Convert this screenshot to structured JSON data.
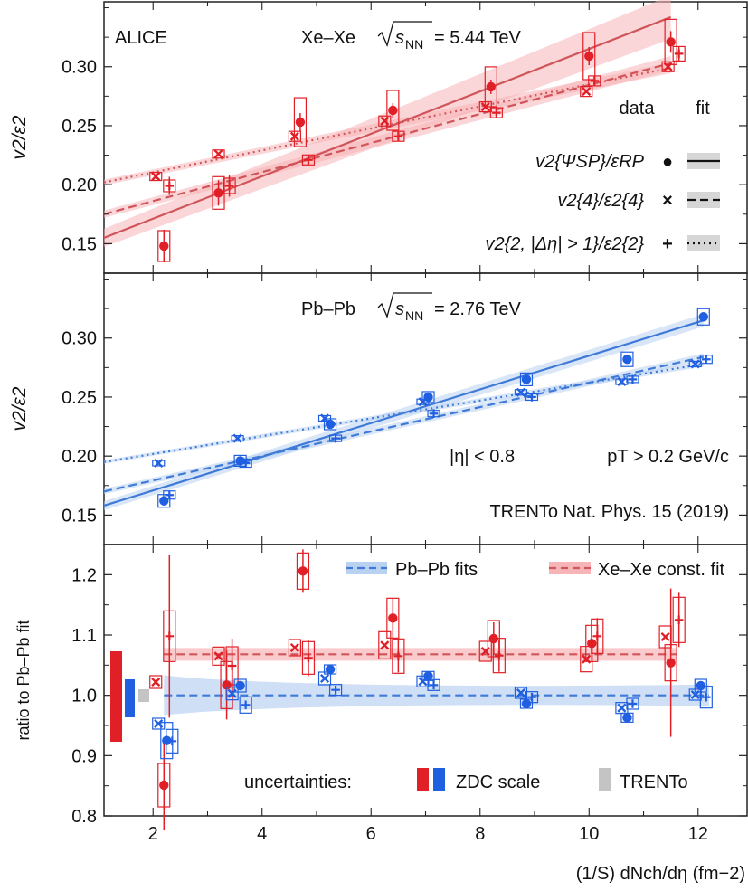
{
  "colors": {
    "xe": "#e11f26",
    "xe_line": "#d0555a",
    "xe_band": "#f7b5b8",
    "pb": "#1f5fe0",
    "pb_line": "#3f7ad8",
    "pb_band": "#b9d2f2",
    "trento_bar": "#c4c4c4",
    "legend_band": "#d6d6d6"
  },
  "chart_data": [
    {
      "type": "scatter",
      "panel": "top",
      "ylabel": "v2/ε2",
      "ylim": [
        0.125,
        0.355
      ],
      "xlim": [
        1.1,
        12.9
      ],
      "yticks": [
        "0.15",
        "0.20",
        "0.25",
        "0.30"
      ],
      "annotations": {
        "experiment": "ALICE",
        "system": "Xe–Xe",
        "energy": "= 5.44 TeV",
        "sqrt_label": "s",
        "sqrt_sub": "NN"
      },
      "legend": {
        "col_data": "data",
        "col_fit": "fit",
        "entries": [
          {
            "label": "v2{ΨSP}/εRP",
            "marker": "●",
            "line": "solid"
          },
          {
            "label": "v2{4}/ε2{4}",
            "marker": "×",
            "line": "dashed"
          },
          {
            "label": "v2{2, |Δη| > 1}/ε2{2}",
            "marker": "+",
            "line": "dotted"
          }
        ]
      },
      "series": [
        {
          "marker": "dot",
          "x": [
            2.2,
            3.2,
            4.7,
            6.4,
            8.2,
            10.0,
            11.5
          ],
          "y": [
            0.148,
            0.193,
            0.253,
            0.263,
            0.283,
            0.309,
            0.321
          ]
        },
        {
          "marker": "cross",
          "x": [
            2.05,
            3.2,
            4.6,
            6.25,
            8.1,
            9.95,
            11.45
          ],
          "y": [
            0.207,
            0.226,
            0.241,
            0.254,
            0.266,
            0.279,
            0.3
          ]
        },
        {
          "marker": "plus",
          "x": [
            2.3,
            3.4,
            4.85,
            6.5,
            8.3,
            10.1,
            11.65
          ],
          "y": [
            0.199,
            0.199,
            0.221,
            0.241,
            0.261,
            0.288,
            0.311
          ]
        }
      ],
      "fits": [
        {
          "style": "solid",
          "x": [
            1.1,
            11.5
          ],
          "y": [
            0.155,
            0.342
          ]
        },
        {
          "style": "dashed",
          "x": [
            1.1,
            11.5
          ],
          "y": [
            0.175,
            0.303
          ]
        },
        {
          "style": "dotted",
          "x": [
            1.1,
            11.5
          ],
          "y": [
            0.202,
            0.299
          ]
        }
      ]
    },
    {
      "type": "scatter",
      "panel": "middle",
      "ylabel": "v2/ε2",
      "ylim": [
        0.125,
        0.355
      ],
      "xlim": [
        1.1,
        12.9
      ],
      "yticks": [
        "0.15",
        "0.20",
        "0.25",
        "0.30"
      ],
      "annotations": {
        "system": "Pb–Pb",
        "energy": "= 2.76 TeV",
        "sqrt_label": "s",
        "sqrt_sub": "NN",
        "eta_cut": "|η| < 0.8",
        "pt_cut": "pT > 0.2 GeV/c",
        "reference": "TRENTo Nat. Phys. 15 (2019)"
      },
      "series": [
        {
          "marker": "dot",
          "x": [
            2.2,
            3.6,
            5.25,
            7.05,
            8.85,
            10.7,
            12.1
          ],
          "y": [
            0.162,
            0.196,
            0.227,
            0.25,
            0.265,
            0.282,
            0.318
          ]
        },
        {
          "marker": "cross",
          "x": [
            2.1,
            3.55,
            5.15,
            6.95,
            8.75,
            10.6,
            11.95
          ],
          "y": [
            0.194,
            0.215,
            0.232,
            0.246,
            0.254,
            0.263,
            0.278
          ]
        },
        {
          "marker": "plus",
          "x": [
            2.3,
            3.7,
            5.35,
            7.15,
            8.95,
            10.8,
            12.15
          ],
          "y": [
            0.167,
            0.194,
            0.215,
            0.236,
            0.25,
            0.265,
            0.282
          ]
        }
      ],
      "fits": [
        {
          "style": "solid",
          "x": [
            1.1,
            12.1
          ],
          "y": [
            0.158,
            0.315
          ]
        },
        {
          "style": "dashed",
          "x": [
            1.1,
            12.1
          ],
          "y": [
            0.17,
            0.284
          ]
        },
        {
          "style": "dotted",
          "x": [
            1.1,
            12.1
          ],
          "y": [
            0.195,
            0.278
          ]
        }
      ]
    },
    {
      "type": "scatter",
      "panel": "bottom",
      "ylabel": "ratio to Pb–Pb fit",
      "xlabel": "(1/S) dNch/dη (fm−2)",
      "ylim": [
        0.8,
        1.25
      ],
      "xlim": [
        1.1,
        12.9
      ],
      "yticks": [
        "0.8",
        "0.9",
        "1.0",
        "1.1",
        "1.2"
      ],
      "xticks": [
        "2",
        "4",
        "6",
        "8",
        "10",
        "12"
      ],
      "legend": {
        "pb": "Pb–Pb fits",
        "xe": "Xe–Xe const. fit"
      },
      "uncertainties": {
        "label": "uncertainties:",
        "zdc": "ZDC scale",
        "trento": "TRENTo"
      },
      "constant_fits": {
        "xe": 1.068,
        "pb": 1.0
      },
      "xe_series": [
        {
          "marker": "dot",
          "x": [
            2.2,
            3.35,
            4.75,
            6.4,
            8.25,
            10.05,
            11.5
          ],
          "y": [
            0.851,
            1.017,
            1.206,
            1.128,
            1.094,
            1.086,
            1.054
          ]
        },
        {
          "marker": "cross",
          "x": [
            2.05,
            3.2,
            4.6,
            6.25,
            8.1,
            9.95,
            11.4
          ],
          "y": [
            1.022,
            1.065,
            1.079,
            1.083,
            1.073,
            1.06,
            1.097
          ]
        },
        {
          "marker": "plus",
          "x": [
            2.3,
            3.45,
            4.85,
            6.5,
            8.35,
            10.15,
            11.65
          ],
          "y": [
            1.098,
            1.049,
            1.062,
            1.065,
            1.066,
            1.098,
            1.125
          ]
        }
      ],
      "pb_series": [
        {
          "marker": "dot",
          "x": [
            2.25,
            3.6,
            5.25,
            7.05,
            8.85,
            10.7,
            12.05
          ],
          "y": [
            0.925,
            1.016,
            1.043,
            1.032,
            0.986,
            0.963,
            1.016
          ]
        },
        {
          "marker": "cross",
          "x": [
            2.1,
            3.45,
            5.15,
            6.95,
            8.75,
            10.6,
            11.95
          ],
          "y": [
            0.953,
            1.003,
            1.028,
            1.023,
            1.004,
            0.979,
            1.001
          ]
        },
        {
          "marker": "plus",
          "x": [
            2.35,
            3.7,
            5.35,
            7.15,
            8.95,
            10.8,
            12.15
          ],
          "y": [
            0.924,
            0.984,
            1.009,
            1.017,
            0.997,
            0.986,
            0.997
          ]
        }
      ]
    }
  ]
}
